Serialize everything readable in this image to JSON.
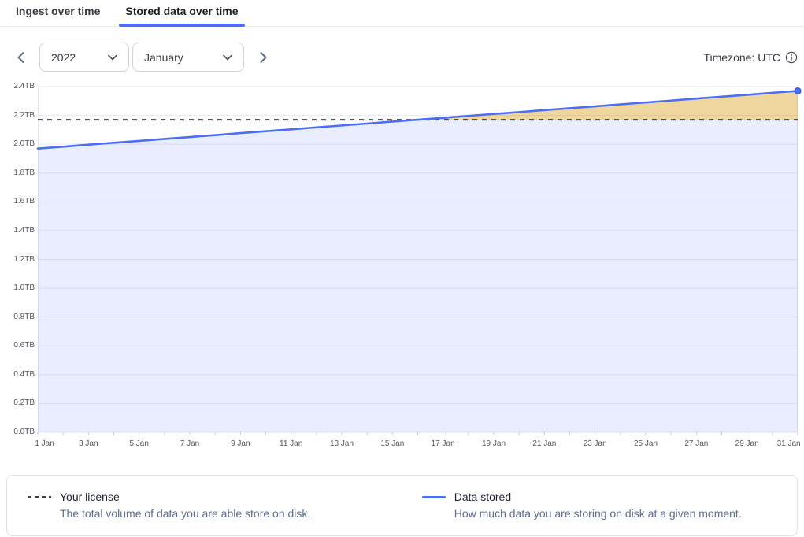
{
  "tabs": [
    {
      "label": "Ingest over time",
      "active": false
    },
    {
      "label": "Stored data over time",
      "active": true
    }
  ],
  "controls": {
    "prev_icon": "chevron-left-icon",
    "next_icon": "chevron-right-icon",
    "year_select": {
      "value": "2022"
    },
    "month_select": {
      "value": "January"
    },
    "timezone_label": "Timezone: UTC",
    "info_icon": "info-circle-icon"
  },
  "chart_data": {
    "type": "area",
    "title": "Stored data over time",
    "xlabel": "",
    "ylabel": "",
    "ylim": [
      0,
      2.4
    ],
    "ytick_step": 0.2,
    "ytick_labels": [
      "0.0TB",
      "0.2TB",
      "0.4TB",
      "0.6TB",
      "0.8TB",
      "1.0TB",
      "1.2TB",
      "1.4TB",
      "1.6TB",
      "1.8TB",
      "2.0TB",
      "2.2TB",
      "2.4TB"
    ],
    "x_days": [
      1,
      2,
      3,
      4,
      5,
      6,
      7,
      8,
      9,
      10,
      11,
      12,
      13,
      14,
      15,
      16,
      17,
      18,
      19,
      20,
      21,
      22,
      23,
      24,
      25,
      26,
      27,
      28,
      29,
      30,
      31
    ],
    "xtick_labeled_days": [
      1,
      3,
      5,
      7,
      9,
      11,
      13,
      15,
      17,
      19,
      21,
      23,
      25,
      27,
      29,
      31
    ],
    "xtick_labels": [
      "1 Jan",
      "3 Jan",
      "5 Jan",
      "7 Jan",
      "9 Jan",
      "11 Jan",
      "13 Jan",
      "15 Jan",
      "17 Jan",
      "19 Jan",
      "21 Jan",
      "23 Jan",
      "25 Jan",
      "27 Jan",
      "29 Jan",
      "31 Jan"
    ],
    "grid": true,
    "legend_position": "bottom",
    "series": [
      {
        "name": "Data stored",
        "type": "line",
        "color": "#4c6ef5",
        "area_fill": "rgba(76,110,245,0.12)",
        "end_dot": true,
        "values": [
          1.97,
          1.983,
          1.997,
          2.01,
          2.023,
          2.037,
          2.05,
          2.063,
          2.077,
          2.09,
          2.103,
          2.117,
          2.13,
          2.143,
          2.157,
          2.17,
          2.183,
          2.197,
          2.21,
          2.223,
          2.237,
          2.25,
          2.263,
          2.277,
          2.29,
          2.303,
          2.317,
          2.33,
          2.343,
          2.357,
          2.37
        ]
      },
      {
        "name": "Your license",
        "type": "hline",
        "style": "dashed",
        "color": "#3c4049",
        "value": 2.17,
        "overage_fill": "rgba(250,176,5,0.38)"
      }
    ]
  },
  "legend": [
    {
      "label": "Your license",
      "description": "The total volume of data you are able store on disk.",
      "marker": "dashed",
      "color": "#3c4049"
    },
    {
      "label": "Data stored",
      "description": "How much data you are storing on disk at a given moment.",
      "marker": "line",
      "color": "#4c6ef5"
    }
  ]
}
